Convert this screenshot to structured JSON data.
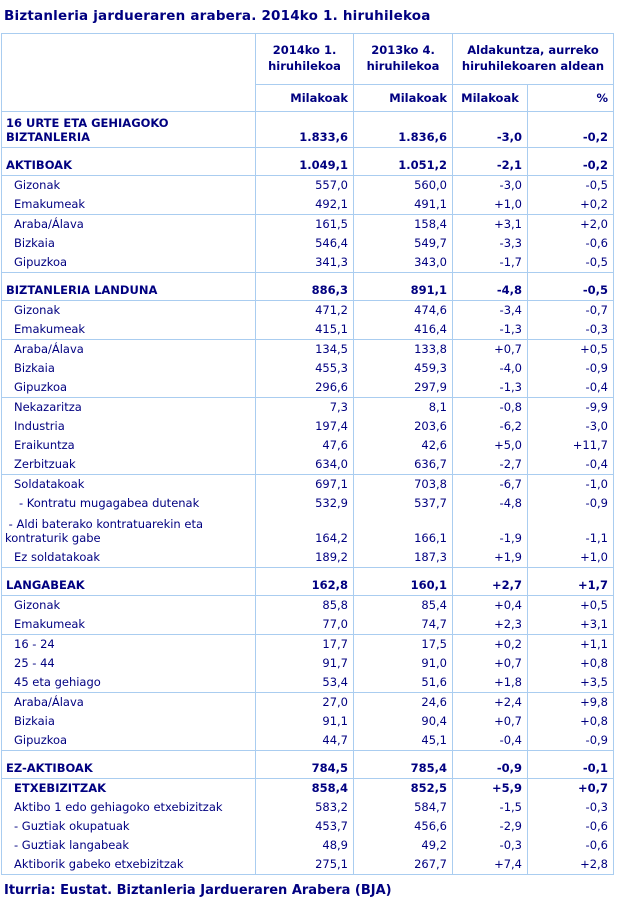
{
  "title": "Biztanleria jardueraren arabera. 2014ko 1. hiruhilekoa",
  "footer": "Iturria: Eustat. Biztanleria Jardueraren Arabera (BJA)",
  "colors": {
    "text_navy": "#000080",
    "grid_blue": "#aacdf0",
    "background": "#ffffff"
  },
  "table": {
    "header": {
      "label_column": "",
      "col_2014": "2014ko 1. hiruhilekoa",
      "col_2013": "2013ko 4. hiruhilekoa",
      "col_change": "Aldakuntza, aurreko hiruhilekoaren aldean",
      "sub_milakoak_2014": "Milakoak",
      "sub_milakoak_2013": "Milakoak",
      "sub_milakoak_change": "Milakoak",
      "sub_percent": "%"
    },
    "rows": [
      {
        "label": "16 URTE ETA GEHIAGOKO\nBIZTANLERIA",
        "cls": "sec-two",
        "v": [
          "1.833,6",
          "1.836,6",
          "-3,0",
          "-0,2"
        ],
        "sep": true
      },
      {
        "label": "AKTIBOAK",
        "cls": "sec",
        "v": [
          "1.049,1",
          "1.051,2",
          "-2,1",
          "-0,2"
        ],
        "sep": true
      },
      {
        "label": "Gizonak",
        "cls": "item",
        "v": [
          "557,0",
          "560,0",
          "-3,0",
          "-0,5"
        ],
        "sep": false
      },
      {
        "label": "Emakumeak",
        "cls": "item",
        "v": [
          "492,1",
          "491,1",
          "+1,0",
          "+0,2"
        ],
        "sep": true
      },
      {
        "label": "Araba/Álava",
        "cls": "item",
        "v": [
          "161,5",
          "158,4",
          "+3,1",
          "+2,0"
        ],
        "sep": false
      },
      {
        "label": "Bizkaia",
        "cls": "item",
        "v": [
          "546,4",
          "549,7",
          "-3,3",
          "-0,6"
        ],
        "sep": false
      },
      {
        "label": "Gipuzkoa",
        "cls": "item",
        "v": [
          "341,3",
          "343,0",
          "-1,7",
          "-0,5"
        ],
        "sep": true
      },
      {
        "label": "BIZTANLERIA LANDUNA",
        "cls": "sec",
        "v": [
          "886,3",
          "891,1",
          "-4,8",
          "-0,5"
        ],
        "sep": true
      },
      {
        "label": "Gizonak",
        "cls": "item",
        "v": [
          "471,2",
          "474,6",
          "-3,4",
          "-0,7"
        ],
        "sep": false
      },
      {
        "label": "Emakumeak",
        "cls": "item",
        "v": [
          "415,1",
          "416,4",
          "-1,3",
          "-0,3"
        ],
        "sep": true
      },
      {
        "label": "Araba/Álava",
        "cls": "item",
        "v": [
          "134,5",
          "133,8",
          "+0,7",
          "+0,5"
        ],
        "sep": false
      },
      {
        "label": "Bizkaia",
        "cls": "item",
        "v": [
          "455,3",
          "459,3",
          "-4,0",
          "-0,9"
        ],
        "sep": false
      },
      {
        "label": "Gipuzkoa",
        "cls": "item",
        "v": [
          "296,6",
          "297,9",
          "-1,3",
          "-0,4"
        ],
        "sep": true
      },
      {
        "label": "Nekazaritza",
        "cls": "item",
        "v": [
          "7,3",
          "8,1",
          "-0,8",
          "-9,9"
        ],
        "sep": false
      },
      {
        "label": "Industria",
        "cls": "item",
        "v": [
          "197,4",
          "203,6",
          "-6,2",
          "-3,0"
        ],
        "sep": false
      },
      {
        "label": "Eraikuntza",
        "cls": "item",
        "v": [
          "47,6",
          "42,6",
          "+5,0",
          "+11,7"
        ],
        "sep": false
      },
      {
        "label": "Zerbitzuak",
        "cls": "item",
        "v": [
          "634,0",
          "636,7",
          "-2,7",
          "-0,4"
        ],
        "sep": true
      },
      {
        "label": "Soldatakoak",
        "cls": "item",
        "v": [
          "697,1",
          "703,8",
          "-6,7",
          "-1,0"
        ],
        "sep": false
      },
      {
        "label": "- Kontratu mugagabea dutenak",
        "cls": "dash",
        "v": [
          "532,9",
          "537,7",
          "-4,8",
          "-0,9"
        ],
        "sep": false
      },
      {
        "label": " - Aldi baterako kontratuarekin eta\nkontraturik gabe",
        "cls": "wrap",
        "v": [
          "164,2",
          "166,1",
          "-1,9",
          "-1,1"
        ],
        "sep": false
      },
      {
        "label": "Ez soldatakoak",
        "cls": "item",
        "v": [
          "189,2",
          "187,3",
          "+1,9",
          "+1,0"
        ],
        "sep": true
      },
      {
        "label": "LANGABEAK",
        "cls": "sec",
        "v": [
          "162,8",
          "160,1",
          "+2,7",
          "+1,7"
        ],
        "sep": true
      },
      {
        "label": "Gizonak",
        "cls": "item",
        "v": [
          "85,8",
          "85,4",
          "+0,4",
          "+0,5"
        ],
        "sep": false
      },
      {
        "label": "Emakumeak",
        "cls": "item",
        "v": [
          "77,0",
          "74,7",
          "+2,3",
          "+3,1"
        ],
        "sep": true
      },
      {
        "label": "16 - 24",
        "cls": "item",
        "v": [
          "17,7",
          "17,5",
          "+0,2",
          "+1,1"
        ],
        "sep": false
      },
      {
        "label": "25 - 44",
        "cls": "item",
        "v": [
          "91,7",
          "91,0",
          "+0,7",
          "+0,8"
        ],
        "sep": false
      },
      {
        "label": "45 eta gehiago",
        "cls": "item",
        "v": [
          "53,4",
          "51,6",
          "+1,8",
          "+3,5"
        ],
        "sep": true
      },
      {
        "label": "Araba/Álava",
        "cls": "item",
        "v": [
          "27,0",
          "24,6",
          "+2,4",
          "+9,8"
        ],
        "sep": false
      },
      {
        "label": "Bizkaia",
        "cls": "item",
        "v": [
          "91,1",
          "90,4",
          "+0,7",
          "+0,8"
        ],
        "sep": false
      },
      {
        "label": "Gipuzkoa",
        "cls": "item",
        "v": [
          "44,7",
          "45,1",
          "-0,4",
          "-0,9"
        ],
        "sep": true
      },
      {
        "label": "EZ-AKTIBOAK",
        "cls": "sec",
        "v": [
          "784,5",
          "785,4",
          "-0,9",
          "-0,1"
        ],
        "sep": true
      },
      {
        "label": "ETXEBIZITZAK",
        "cls": "bold-item",
        "v": [
          "858,4",
          "852,5",
          "+5,9",
          "+0,7"
        ],
        "sep": false
      },
      {
        "label": "Aktibo 1 edo gehiagoko etxebizitzak",
        "cls": "item",
        "v": [
          "583,2",
          "584,7",
          "-1,5",
          "-0,3"
        ],
        "sep": false
      },
      {
        "label": "- Guztiak okupatuak",
        "cls": "item",
        "v": [
          "453,7",
          "456,6",
          "-2,9",
          "-0,6"
        ],
        "sep": false
      },
      {
        "label": "- Guztiak langabeak",
        "cls": "item",
        "v": [
          "48,9",
          "49,2",
          "-0,3",
          "-0,6"
        ],
        "sep": false
      },
      {
        "label": "Aktiborik gabeko etxebizitzak",
        "cls": "item",
        "v": [
          "275,1",
          "267,7",
          "+7,4",
          "+2,8"
        ],
        "sep": false
      }
    ]
  }
}
